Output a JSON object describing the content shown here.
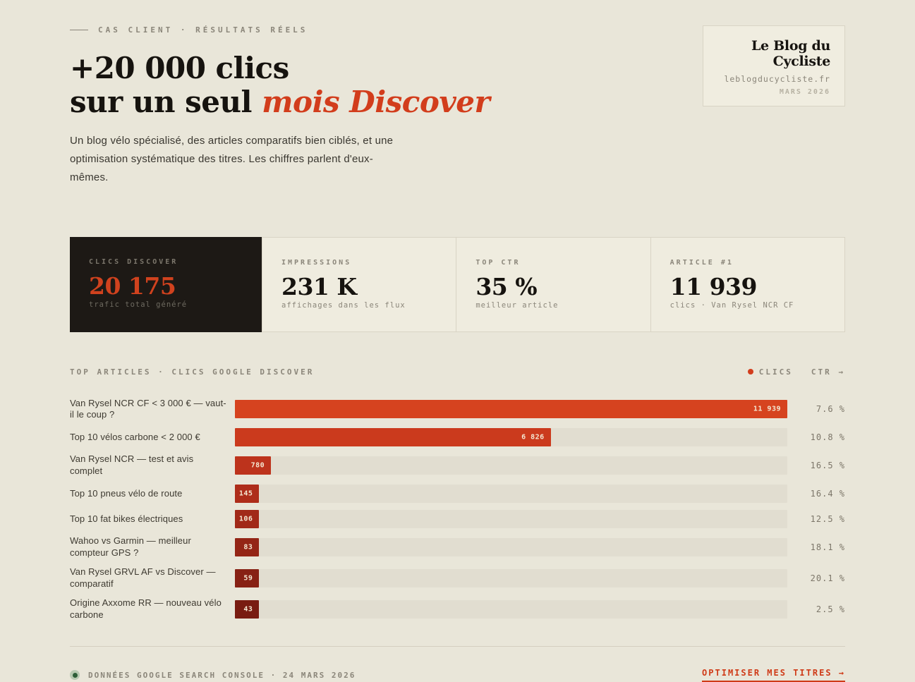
{
  "colors": {
    "page_bg": "#e9e6d9",
    "accent": "#d23d1c",
    "dark_card_bg": "#1d1915",
    "light_card_bg": "#efecdf",
    "track": "#e1ddd0",
    "status_green": "#2d5f38",
    "status_green_halo": "#b8cab1"
  },
  "header": {
    "eyebrow": "CAS CLIENT · RÉSULTATS RÉELS",
    "title_line1": "+20 000 clics",
    "title_line2_plain": "sur un seul ",
    "title_line2_accent": "mois Discover",
    "description": "Un blog vélo spécialisé, des articles comparatifs bien ciblés, et une optimisation systématique des titres. Les chiffres parlent d'eux-mêmes."
  },
  "brand_card": {
    "name": "Le Blog du Cycliste",
    "domain": "leblogducycliste.fr",
    "period": "MARS 2026"
  },
  "stats": [
    {
      "label": "CLICS DISCOVER",
      "value": "20 175",
      "sub": "trafic total généré"
    },
    {
      "label": "IMPRESSIONS",
      "value": "231 K",
      "sub": "affichages dans les flux"
    },
    {
      "label": "TOP CTR",
      "value": "35 %",
      "sub": "meilleur article"
    },
    {
      "label": "ARTICLE #1",
      "value": "11 939",
      "sub": "clics · Van Rysel NCR CF"
    }
  ],
  "chart": {
    "heading": "TOP ARTICLES · CLICS GOOGLE DISCOVER",
    "legend_clicks": "CLICS",
    "legend_ctr": "CTR →"
  },
  "chart_data": {
    "type": "bar",
    "orientation": "horizontal",
    "title": "TOP ARTICLES · CLICS GOOGLE DISCOVER",
    "categories": [
      "Van Rysel NCR CF < 3 000 € — vaut-il le coup ?",
      "Top 10 vélos carbone < 2 000 €",
      "Van Rysel NCR — test et avis complet",
      "Top 10 pneus vélo de route",
      "Top 10 fat bikes électriques",
      "Wahoo vs Garmin — meilleur compteur GPS ?",
      "Van Rysel GRVL AF vs Discover — comparatif",
      "Origine Axxome RR — nouveau vélo carbone"
    ],
    "series": [
      {
        "name": "CLICS",
        "values": [
          11939,
          6826,
          780,
          145,
          106,
          83,
          59,
          43
        ]
      },
      {
        "name": "CTR %",
        "values": [
          7.6,
          10.8,
          16.5,
          16.4,
          12.5,
          18.1,
          20.1,
          2.5
        ]
      }
    ],
    "value_labels": [
      "11 939",
      "6 826",
      "780",
      "145",
      "106",
      "83",
      "59",
      "43"
    ],
    "ctr_labels": [
      "7.6 %",
      "10.8 %",
      "16.5 %",
      "16.4 %",
      "12.5 %",
      "18.1 %",
      "20.1 %",
      "2.5 %"
    ],
    "bar_colors": [
      "#d6431f",
      "#cb3a1d",
      "#bd331c",
      "#ae2d1a",
      "#a12918",
      "#942516",
      "#872114",
      "#791c11"
    ],
    "xlim": [
      0,
      11939
    ],
    "min_bar_pct": 4.4,
    "legend_position": "top-right",
    "grid": false
  },
  "footer": {
    "status_text": "DONNÉES GOOGLE SEARCH CONSOLE · 24 MARS 2026",
    "cta_label": "OPTIMISER MES TITRES →"
  }
}
